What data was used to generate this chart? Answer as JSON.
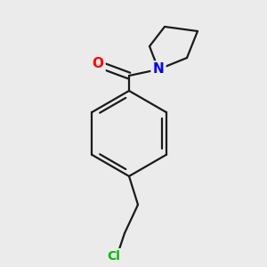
{
  "background_color": "#ebebeb",
  "bond_color": "#1a1a1a",
  "atom_colors": {
    "O": "#ff0000",
    "N": "#0000ff",
    "Cl": "#00bb00",
    "C": "#1a1a1a"
  },
  "bond_width": 1.6,
  "figsize": [
    3.0,
    3.0
  ],
  "dpi": 100,
  "xlim": [
    0,
    300
  ],
  "ylim": [
    0,
    300
  ]
}
